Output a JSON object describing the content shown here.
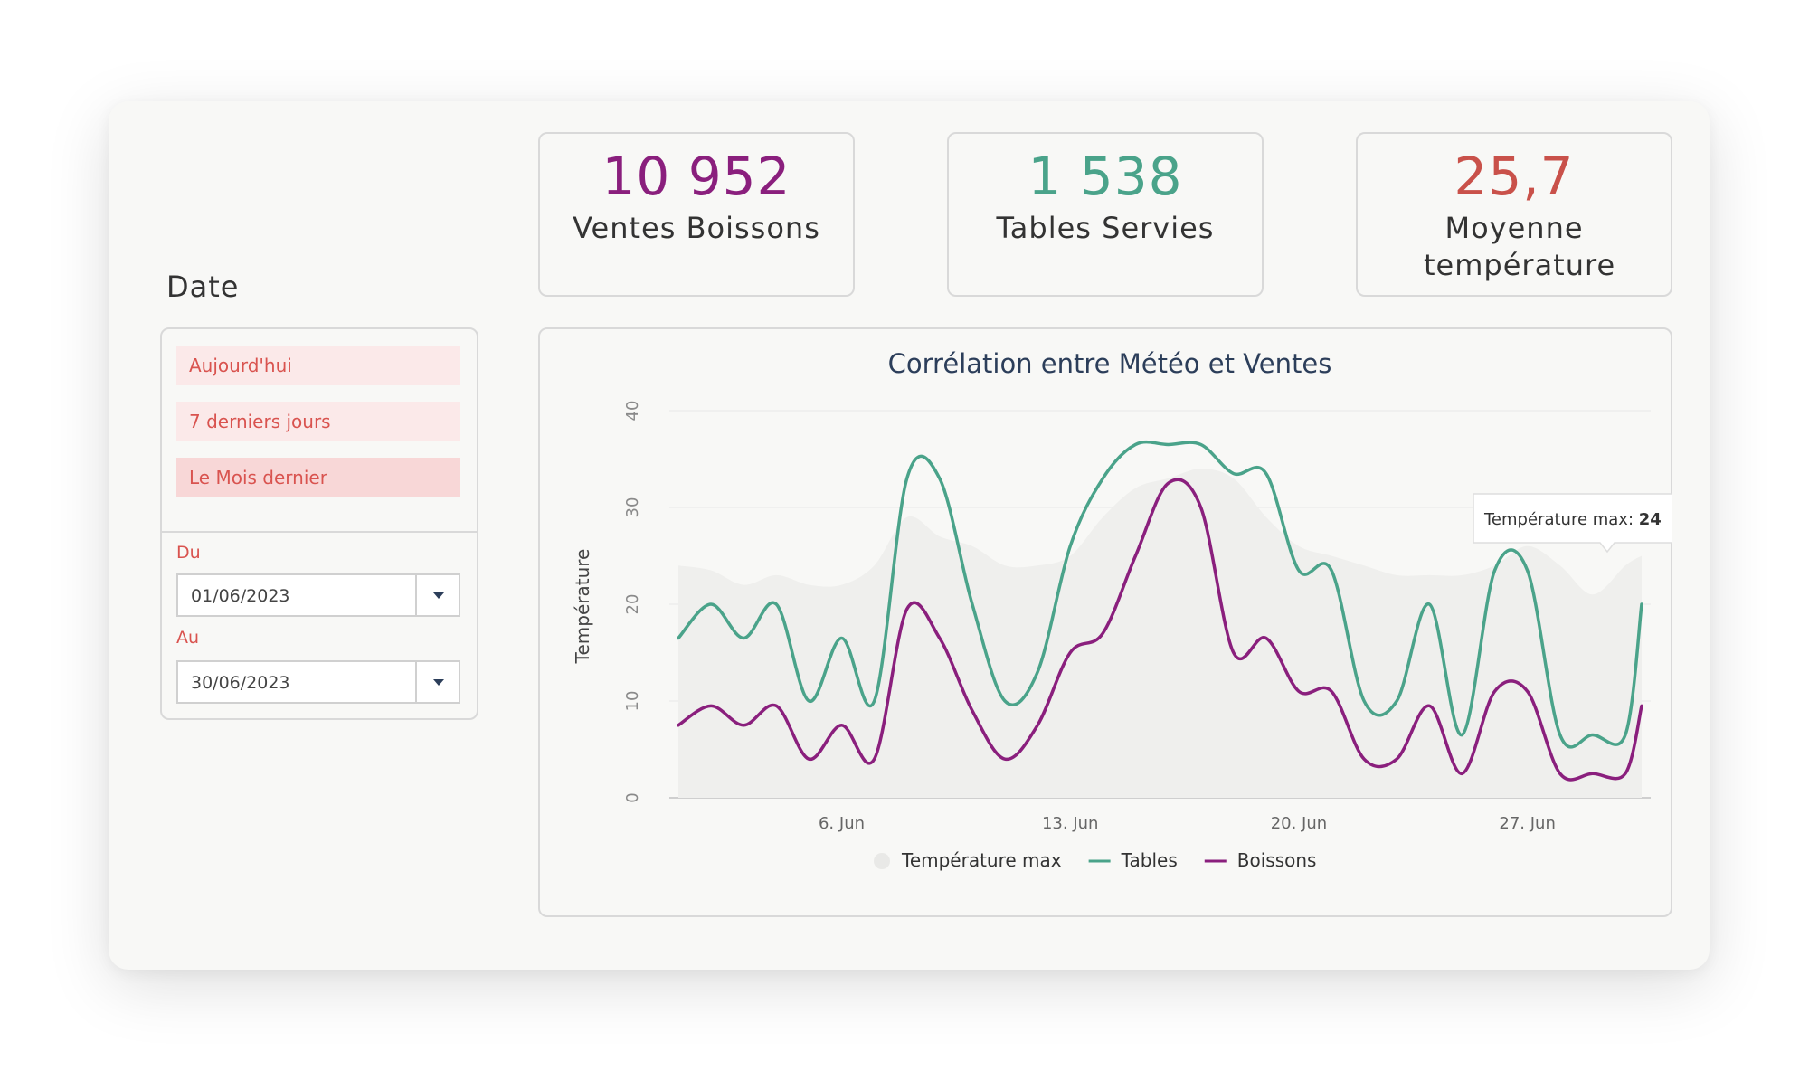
{
  "kpis": [
    {
      "value": "10 952",
      "label": "Ventes Boissons",
      "color": "#8a1f7d"
    },
    {
      "value": "1 538",
      "label": "Tables Servies",
      "color": "#4aa38a"
    },
    {
      "value": "25,7",
      "label": "Moyenne température",
      "color": "#c9514a"
    }
  ],
  "filter": {
    "title": "Date",
    "presets": [
      "Aujourd'hui",
      "7 derniers jours",
      "Le Mois dernier"
    ],
    "active_preset": "Le Mois dernier",
    "from_label": "Du",
    "from_value": "01/06/2023",
    "to_label": "Au",
    "to_value": "30/06/2023",
    "accent_color": "#d9534f"
  },
  "chart_data": {
    "type": "line",
    "title": "Corrélation entre Météo et Ventes",
    "ylabel": "Température",
    "ylim": [
      0,
      40
    ],
    "yticks": [
      0,
      10,
      20,
      30,
      40
    ],
    "xlim": [
      1,
      30.5
    ],
    "xticks": [
      {
        "x": 6,
        "label": "6. Jun"
      },
      {
        "x": 13,
        "label": "13. Jun"
      },
      {
        "x": 20,
        "label": "20. Jun"
      },
      {
        "x": 27,
        "label": "27. Jun"
      }
    ],
    "grid": true,
    "legend_position": "bottom",
    "tooltip": {
      "label": "Température max",
      "value": "24",
      "x": 30.5
    },
    "series": [
      {
        "name": "Température max",
        "kind": "area",
        "color": "#efefed",
        "points": [
          [
            1,
            24
          ],
          [
            2,
            23.5
          ],
          [
            3,
            22
          ],
          [
            4,
            23
          ],
          [
            5,
            22
          ],
          [
            6,
            22
          ],
          [
            7,
            24
          ],
          [
            8,
            29
          ],
          [
            9,
            27
          ],
          [
            10,
            26
          ],
          [
            11,
            24
          ],
          [
            12,
            24
          ],
          [
            13,
            25
          ],
          [
            14,
            29
          ],
          [
            15,
            32
          ],
          [
            16,
            33
          ],
          [
            17,
            34
          ],
          [
            18,
            33
          ],
          [
            19,
            29
          ],
          [
            20,
            26
          ],
          [
            21,
            25
          ],
          [
            22,
            24
          ],
          [
            23,
            23
          ],
          [
            24,
            23
          ],
          [
            25,
            23
          ],
          [
            26,
            24
          ],
          [
            27,
            26
          ],
          [
            28,
            24
          ],
          [
            29,
            21
          ],
          [
            30,
            24
          ],
          [
            30.5,
            25
          ]
        ]
      },
      {
        "name": "Tables",
        "kind": "line",
        "color": "#4aa38a",
        "points": [
          [
            1,
            16.5
          ],
          [
            2,
            20
          ],
          [
            3,
            16.5
          ],
          [
            4,
            20
          ],
          [
            5,
            10
          ],
          [
            6,
            16.5
          ],
          [
            7,
            10
          ],
          [
            8,
            33
          ],
          [
            9,
            33
          ],
          [
            10,
            20
          ],
          [
            11,
            10
          ],
          [
            12,
            13
          ],
          [
            13,
            26
          ],
          [
            14,
            33
          ],
          [
            15,
            36.5
          ],
          [
            16,
            36.5
          ],
          [
            17,
            36.5
          ],
          [
            18,
            33.5
          ],
          [
            19,
            33.5
          ],
          [
            20,
            23.5
          ],
          [
            21,
            23.5
          ],
          [
            22,
            10
          ],
          [
            23,
            10
          ],
          [
            24,
            20
          ],
          [
            25,
            6.5
          ],
          [
            26,
            23.5
          ],
          [
            27,
            23.5
          ],
          [
            28,
            6.5
          ],
          [
            29,
            6.5
          ],
          [
            30,
            6.5
          ],
          [
            30.5,
            20
          ]
        ]
      },
      {
        "name": "Boissons",
        "kind": "line",
        "color": "#8a1f7d",
        "points": [
          [
            1,
            7.5
          ],
          [
            2,
            9.5
          ],
          [
            3,
            7.5
          ],
          [
            4,
            9.5
          ],
          [
            5,
            4
          ],
          [
            6,
            7.5
          ],
          [
            7,
            4
          ],
          [
            8,
            19.5
          ],
          [
            9,
            16.5
          ],
          [
            10,
            9
          ],
          [
            11,
            4
          ],
          [
            12,
            7.5
          ],
          [
            13,
            15
          ],
          [
            14,
            17
          ],
          [
            15,
            25
          ],
          [
            16,
            32.5
          ],
          [
            17,
            30
          ],
          [
            18,
            15
          ],
          [
            19,
            16.5
          ],
          [
            20,
            11
          ],
          [
            21,
            11
          ],
          [
            22,
            4
          ],
          [
            23,
            4
          ],
          [
            24,
            9.5
          ],
          [
            25,
            2.5
          ],
          [
            26,
            11
          ],
          [
            27,
            11
          ],
          [
            28,
            2.5
          ],
          [
            29,
            2.5
          ],
          [
            30,
            2.5
          ],
          [
            30.5,
            9.5
          ]
        ]
      }
    ]
  }
}
